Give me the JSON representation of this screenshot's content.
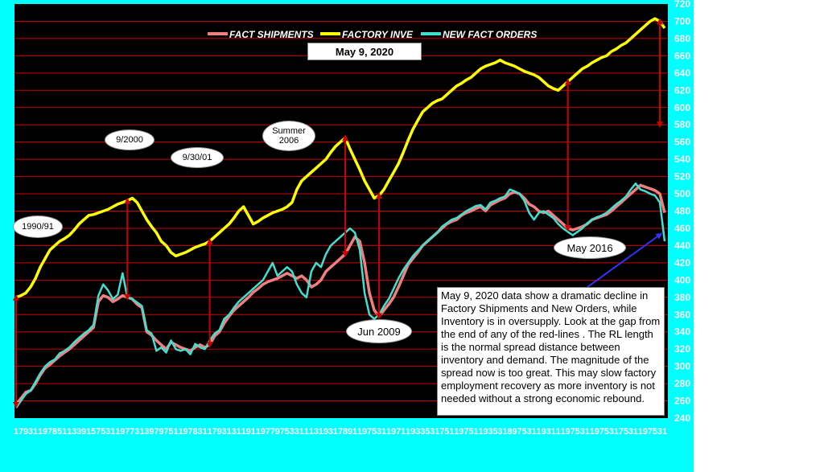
{
  "chart_data": {
    "type": "line",
    "date_label": "May 9, 2020",
    "ylim": [
      240,
      720
    ],
    "y_ticks": [
      240,
      260,
      280,
      300,
      320,
      340,
      360,
      380,
      400,
      420,
      440,
      460,
      480,
      500,
      520,
      540,
      560,
      580,
      600,
      620,
      640,
      660,
      680,
      700,
      720
    ],
    "grid": true,
    "legend_position": "top",
    "colors": {
      "shipments": "#f08080",
      "inventory": "#ffff00",
      "orders": "#40e0d0",
      "background": "#000000",
      "gridline": "#cc0000",
      "arrow": "#cc0000",
      "callout_arrow": "#3333ff"
    },
    "series": [
      {
        "name": "FACT SHIPMENTS",
        "key": "shipments",
        "values": [
          256,
          263,
          270,
          272,
          280,
          290,
          298,
          302,
          307,
          312,
          316,
          320,
          325,
          330,
          335,
          340,
          345,
          375,
          382,
          380,
          375,
          378,
          382,
          380,
          378,
          372,
          368,
          340,
          336,
          330,
          325,
          320,
          328,
          325,
          322,
          320,
          318,
          322,
          325,
          322,
          325,
          335,
          340,
          350,
          358,
          365,
          370,
          375,
          380,
          386,
          390,
          395,
          398,
          400,
          402,
          405,
          408,
          405,
          402,
          405,
          400,
          392,
          395,
          400,
          410,
          415,
          420,
          425,
          430,
          440,
          450,
          445,
          420,
          385,
          365,
          358,
          365,
          372,
          380,
          392,
          405,
          418,
          425,
          432,
          440,
          445,
          450,
          455,
          460,
          465,
          468,
          470,
          475,
          478,
          480,
          483,
          485,
          480,
          487,
          490,
          493,
          495,
          500,
          502,
          500,
          495,
          488,
          485,
          480,
          478,
          480,
          475,
          470,
          465,
          460,
          458,
          460,
          462,
          465,
          470,
          472,
          474,
          476,
          480,
          485,
          490,
          495,
          500,
          505,
          510,
          508,
          506,
          504,
          500,
          478
        ]
      },
      {
        "name": "FACTORY INVE",
        "key": "inventory",
        "values": [
          380,
          382,
          385,
          392,
          402,
          415,
          425,
          435,
          440,
          445,
          448,
          452,
          458,
          465,
          470,
          475,
          476,
          478,
          480,
          482,
          485,
          488,
          490,
          492,
          495,
          490,
          480,
          470,
          462,
          455,
          445,
          440,
          432,
          428,
          430,
          432,
          435,
          438,
          440,
          442,
          445,
          450,
          455,
          460,
          465,
          472,
          480,
          485,
          475,
          465,
          468,
          472,
          475,
          478,
          480,
          482,
          485,
          490,
          505,
          515,
          520,
          525,
          530,
          535,
          540,
          548,
          555,
          560,
          565,
          552,
          540,
          528,
          515,
          505,
          495,
          498,
          505,
          515,
          525,
          535,
          548,
          562,
          575,
          585,
          595,
          600,
          605,
          608,
          610,
          615,
          620,
          625,
          628,
          632,
          635,
          640,
          645,
          648,
          650,
          652,
          655,
          652,
          650,
          648,
          645,
          642,
          640,
          638,
          635,
          630,
          625,
          622,
          620,
          625,
          630,
          635,
          640,
          645,
          648,
          652,
          655,
          658,
          660,
          665,
          668,
          672,
          675,
          680,
          685,
          690,
          695,
          700,
          703,
          700,
          692
        ]
      },
      {
        "name": "NEW FACT ORDERS",
        "key": "orders",
        "values": [
          252,
          260,
          268,
          272,
          282,
          292,
          300,
          305,
          308,
          315,
          318,
          322,
          328,
          333,
          338,
          342,
          348,
          382,
          395,
          388,
          378,
          383,
          408,
          380,
          378,
          374,
          370,
          342,
          338,
          318,
          322,
          316,
          330,
          320,
          318,
          320,
          314,
          326,
          322,
          320,
          330,
          338,
          342,
          355,
          360,
          368,
          375,
          380,
          385,
          390,
          395,
          400,
          410,
          420,
          405,
          410,
          415,
          410,
          395,
          385,
          380,
          410,
          420,
          415,
          430,
          440,
          445,
          450,
          455,
          460,
          455,
          435,
          385,
          360,
          355,
          360,
          370,
          378,
          390,
          402,
          412,
          420,
          428,
          434,
          440,
          445,
          450,
          455,
          462,
          466,
          470,
          472,
          476,
          480,
          483,
          486,
          487,
          482,
          490,
          492,
          495,
          497,
          505,
          503,
          500,
          492,
          478,
          470,
          478,
          480,
          476,
          472,
          465,
          460,
          456,
          452,
          456,
          460,
          466,
          470,
          473,
          475,
          478,
          483,
          488,
          492,
          497,
          505,
          512,
          505,
          503,
          500,
          498,
          490,
          445
        ]
      }
    ],
    "x_tick_labels": [
      "1",
      "7",
      "9",
      "3",
      "1",
      "1",
      "9",
      "7",
      "8",
      "5",
      "1",
      "1",
      "3",
      "3",
      "9",
      "1",
      "5",
      "7",
      "5",
      "3",
      "1",
      "1",
      "9",
      "7",
      "7",
      "3",
      "1",
      "3",
      "9",
      "7",
      "9",
      "7",
      "5",
      "1",
      "1",
      "9",
      "7",
      "8",
      "3",
      "1",
      "1",
      "7",
      "9",
      "3",
      "1",
      "3",
      "1",
      "1",
      "9",
      "1",
      "1",
      "9",
      "7",
      "7",
      "9",
      "7",
      "5",
      "3",
      "3",
      "1",
      "1",
      "1",
      "3",
      "1",
      "9",
      "3",
      "1",
      "7",
      "8",
      "9",
      "1",
      "1",
      "9",
      "7",
      "5",
      "3",
      "1",
      "1",
      "9",
      "7",
      "1",
      "1",
      "9",
      "3",
      "3",
      "5",
      "3",
      "1",
      "7",
      "5",
      "1",
      "1",
      "9",
      "7",
      "5",
      "1",
      "1",
      "9",
      "3",
      "5",
      "3",
      "1",
      "8",
      "9",
      "7",
      "5",
      "3",
      "1",
      "1",
      "9",
      "3",
      "1",
      "1",
      "1",
      "9",
      "7",
      "5",
      "3",
      "1",
      "1",
      "9",
      "7",
      "5",
      "3",
      "1",
      "7",
      "5",
      "3",
      "1",
      "1",
      "9",
      "7",
      "5",
      "3",
      "1"
    ],
    "annotations": [
      {
        "id": "ann-1990",
        "label": "1990/91"
      },
      {
        "id": "ann-2000",
        "label": "9/2000"
      },
      {
        "id": "ann-2001",
        "label": "9/30/01"
      },
      {
        "id": "ann-2006",
        "label": "Summer\n2006"
      },
      {
        "id": "ann-2009",
        "label": "Jun 2009"
      },
      {
        "id": "ann-2016",
        "label": "May 2016"
      }
    ],
    "note": "May 9, 2020 data show a dramatic decline in Factory Shipments and New Orders, while Inventory is in oversupply. Look at the gap from the end of any of the red-lines . The RL length is the normal spread distance between inventory and demand. The magnitude of the spread now is too great. This may slow factory employment recovery as more inventory is not needed without a strong economic rebound."
  }
}
